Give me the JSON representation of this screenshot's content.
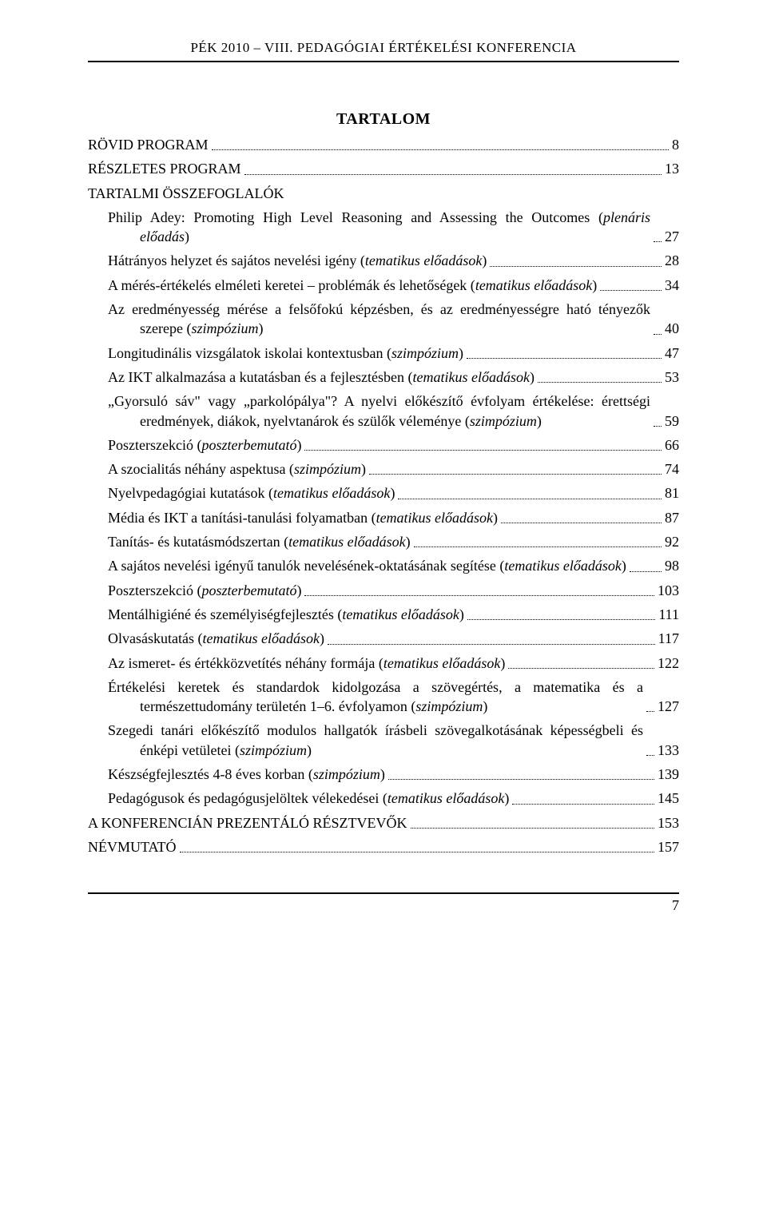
{
  "header": "PÉK 2010 – VIII. PEDAGÓGIAI ÉRTÉKELÉSI KONFERENCIA",
  "title": "TARTALOM",
  "page_number": "7",
  "entries": [
    {
      "level": 0,
      "label": "RÖVID PROGRAM",
      "page": "8"
    },
    {
      "level": 0,
      "label": "RÉSZLETES PROGRAM",
      "page": "13"
    },
    {
      "level": 0,
      "label": "TARTALMI ÖSSZEFOGLALÓK",
      "page": ""
    },
    {
      "level": 1,
      "label": "Philip Adey: Promoting High Level Reasoning and Assessing the Outcomes (<i>plenáris előadás</i>)",
      "page": "27",
      "indent": true
    },
    {
      "level": 1,
      "label": "Hátrányos helyzet és sajátos nevelési igény (<i>tematikus előadások</i>)",
      "page": "28"
    },
    {
      "level": 1,
      "label": "A mérés-értékelés elméleti keretei – problémák és lehetőségek (<i>tematikus előadások</i>)",
      "page": "34",
      "indent": true
    },
    {
      "level": 1,
      "label": "Az eredményesség mérése a felsőfokú képzésben, és az eredményességre ható tényezők szerepe (<i>szimpózium</i>)",
      "page": "40",
      "indent": true
    },
    {
      "level": 1,
      "label": "Longitudinális vizsgálatok iskolai kontextusban (<i>szimpózium</i>)",
      "page": "47"
    },
    {
      "level": 1,
      "label": "Az IKT alkalmazása a kutatásban és a fejlesztésben (<i>tematikus előadások</i>)",
      "page": "53"
    },
    {
      "level": 1,
      "label": "„Gyorsuló sáv\" vagy „parkolópálya\"? A nyelvi előkészítő évfolyam értékelése: érettségi eredmények, diákok, nyelvtanárok és szülők véleménye (<i>szimpózium</i>)",
      "page": "59",
      "indent": true
    },
    {
      "level": 1,
      "label": "Poszterszekció (<i>poszterbemutató</i>)",
      "page": "66"
    },
    {
      "level": 1,
      "label": "A szocialitás néhány aspektusa (<i>szimpózium</i>)",
      "page": "74"
    },
    {
      "level": 1,
      "label": "Nyelvpedagógiai kutatások (<i>tematikus előadások</i>)",
      "page": "81"
    },
    {
      "level": 1,
      "label": "Média és IKT a tanítási-tanulási folyamatban (<i>tematikus előadások</i>)",
      "page": "87"
    },
    {
      "level": 1,
      "label": "Tanítás- és kutatásmódszertan (<i>tematikus előadások</i>)",
      "page": "92"
    },
    {
      "level": 1,
      "label": "A sajátos nevelési igényű tanulók nevelésének-oktatásának segítése (<i>tematikus előadások</i>)",
      "page": "98",
      "indent": true
    },
    {
      "level": 1,
      "label": "Poszterszekció (<i>poszterbemutató</i>)",
      "page": "103"
    },
    {
      "level": 1,
      "label": "Mentálhigiéné és személyiségfejlesztés (<i>tematikus előadások</i>)",
      "page": "111"
    },
    {
      "level": 1,
      "label": "Olvasáskutatás (<i>tematikus előadások</i>)",
      "page": "117"
    },
    {
      "level": 1,
      "label": "Az ismeret- és értékközvetítés néhány formája (<i>tematikus előadások</i>)",
      "page": "122"
    },
    {
      "level": 1,
      "label": "Értékelési keretek és standardok kidolgozása a szövegértés, a matematika és a természettudomány területén 1–6. évfolyamon (<i>szimpózium</i>)",
      "page": "127",
      "indent": true
    },
    {
      "level": 1,
      "label": "Szegedi tanári előkészítő modulos hallgatók írásbeli szövegalkotásának képességbeli és énképi vetületei (<i>szimpózium</i>)",
      "page": "133",
      "indent": true
    },
    {
      "level": 1,
      "label": "Készségfejlesztés 4-8 éves korban (<i>szimpózium</i>)",
      "page": "139"
    },
    {
      "level": 1,
      "label": "Pedagógusok és pedagógusjelöltek vélekedései (<i>tematikus előadások</i>)",
      "page": "145"
    },
    {
      "level": 0,
      "label": "A KONFERENCIÁN PREZENTÁLÓ RÉSZTVEVŐK",
      "page": "153"
    },
    {
      "level": 0,
      "label": "NÉVMUTATÓ",
      "page": "157"
    }
  ]
}
